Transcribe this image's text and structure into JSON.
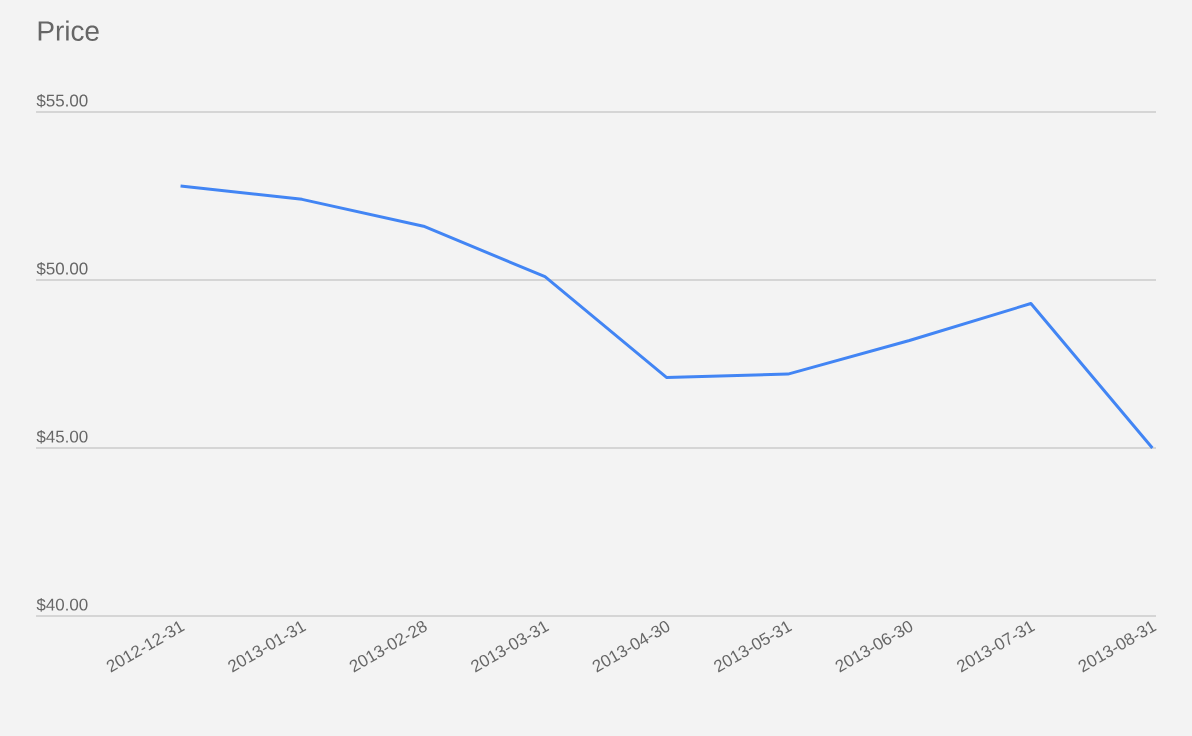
{
  "chart_data": {
    "type": "line",
    "title": "Price",
    "categories": [
      "2012-12-31",
      "2013-01-31",
      "2013-02-28",
      "2013-03-31",
      "2013-04-30",
      "2013-05-31",
      "2013-06-30",
      "2013-07-31",
      "2013-08-31"
    ],
    "series": [
      {
        "color": "#4285f4",
        "values": [
          52.8,
          52.4,
          51.6,
          50.1,
          47.1,
          47.2,
          48.2,
          49.3,
          45.0
        ]
      }
    ],
    "ylim": [
      40,
      55
    ],
    "yticks": [
      {
        "value": 40,
        "label": "$40.00"
      },
      {
        "value": 45,
        "label": "$45.00"
      },
      {
        "value": 50,
        "label": "$50.00"
      },
      {
        "value": 55,
        "label": "$55.00"
      }
    ],
    "grid": "y",
    "marker": "none"
  }
}
